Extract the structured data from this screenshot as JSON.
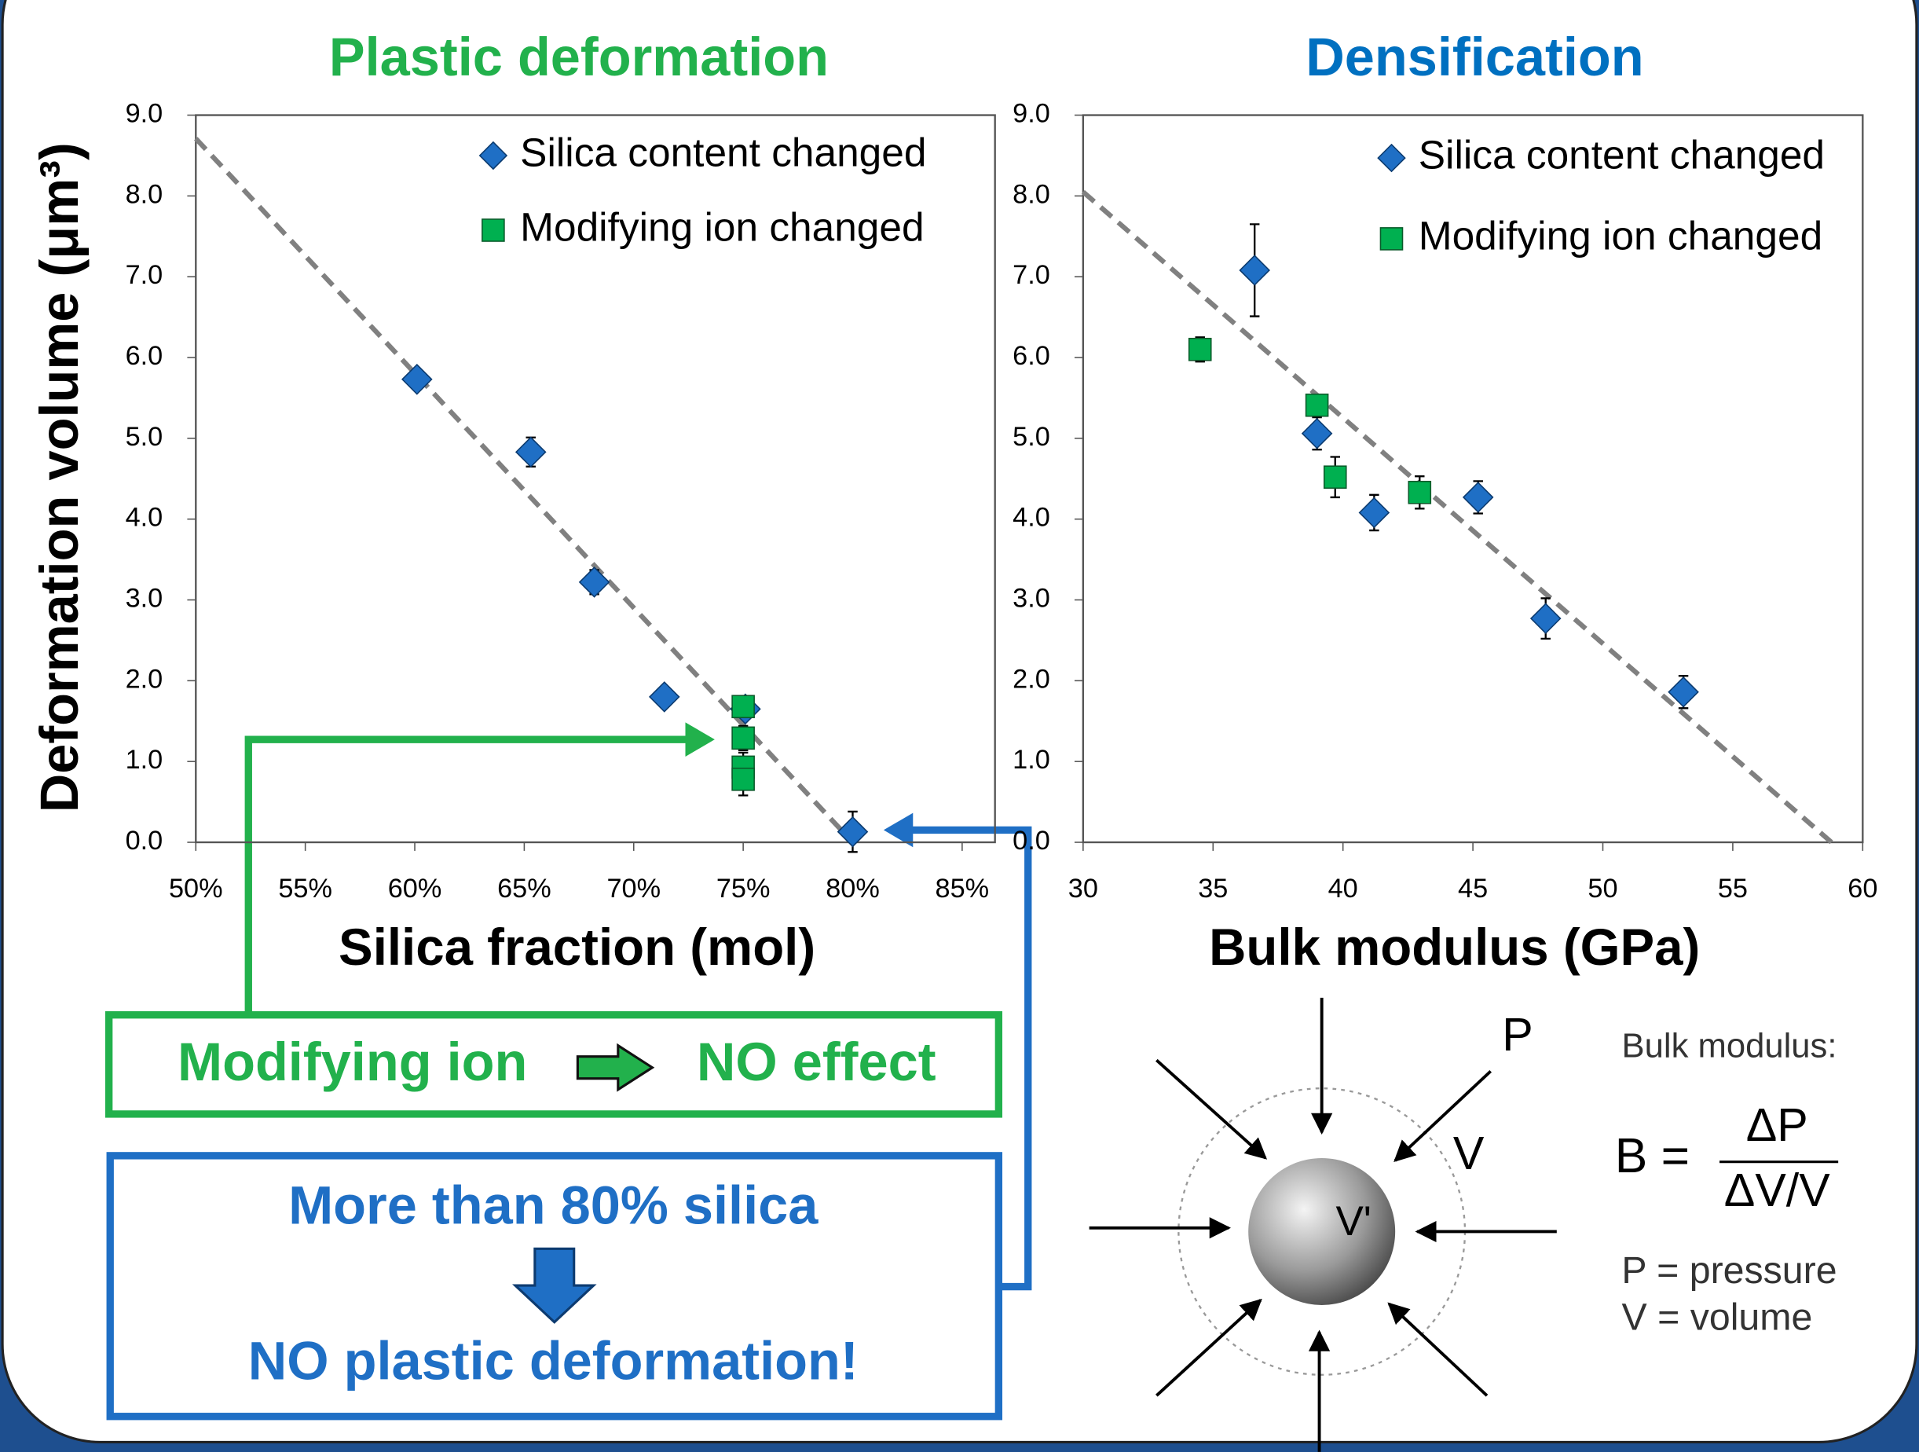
{
  "chart_data": [
    {
      "type": "scatter",
      "title": "Plastic deformation",
      "title_color": "#22b14c",
      "x_label": "Silica fraction (mol)",
      "y_label": "Deformation volume  (μm³)",
      "xlim": [
        50,
        86.5
      ],
      "ylim": [
        0,
        9
      ],
      "xticks": [
        {
          "value": 50,
          "label": "50%"
        },
        {
          "value": 55,
          "label": "55%"
        },
        {
          "value": 60,
          "label": "60%"
        },
        {
          "value": 65,
          "label": "65%"
        },
        {
          "value": 70,
          "label": "70%"
        },
        {
          "value": 75,
          "label": "75%"
        },
        {
          "value": 80,
          "label": "80%"
        },
        {
          "value": 85,
          "label": "85%"
        }
      ],
      "yticks": [
        {
          "value": 0,
          "label": "0.0"
        },
        {
          "value": 1,
          "label": "1.0"
        },
        {
          "value": 2,
          "label": "2.0"
        },
        {
          "value": 3,
          "label": "3.0"
        },
        {
          "value": 4,
          "label": "4.0"
        },
        {
          "value": 5,
          "label": "5.0"
        },
        {
          "value": 6,
          "label": "6.0"
        },
        {
          "value": 7,
          "label": "7.0"
        },
        {
          "value": 8,
          "label": "8.0"
        },
        {
          "value": 9,
          "label": "9.0"
        }
      ],
      "series": [
        {
          "name": "Silica content changed",
          "color": "#1f6fc5",
          "marker": "diamond",
          "x": [
            60.1,
            65.3,
            68.2,
            71.4,
            75.1,
            80
          ],
          "values": [
            5.73,
            4.83,
            3.22,
            1.8,
            1.65,
            0.13
          ],
          "errors": [
            0.12,
            0.18,
            0.15,
            0.08,
            0.12,
            0.25
          ]
        },
        {
          "name": "Modifying ion changed",
          "color": "#00b050",
          "marker": "square",
          "x": [
            75,
            75,
            75,
            75
          ],
          "values": [
            1.68,
            1.29,
            0.93,
            0.78
          ],
          "errors": [
            0.12,
            0.15,
            0.18,
            0.2
          ]
        }
      ],
      "trendline": {
        "x": [
          50,
          80
        ],
        "values": [
          8.71,
          0
        ],
        "color": "#808080"
      }
    },
    {
      "type": "scatter",
      "title": "Densification",
      "title_color": "#0070c0",
      "x_label": "Bulk modulus (GPa)",
      "xlim": [
        30,
        60
      ],
      "ylim": [
        0,
        9
      ],
      "xticks": [
        30,
        35,
        40,
        45,
        50,
        55,
        60
      ],
      "yticks": [
        {
          "value": 0,
          "label": "0.0"
        },
        {
          "value": 1,
          "label": "1.0"
        },
        {
          "value": 2,
          "label": "2.0"
        },
        {
          "value": 3,
          "label": "3.0"
        },
        {
          "value": 4,
          "label": "4.0"
        },
        {
          "value": 5,
          "label": "5.0"
        },
        {
          "value": 6,
          "label": "6.0"
        },
        {
          "value": 7,
          "label": "7.0"
        },
        {
          "value": 8,
          "label": "8.0"
        },
        {
          "value": 9,
          "label": "9.0"
        }
      ],
      "series": [
        {
          "name": "Silica content changed",
          "color": "#1f6fc5",
          "marker": "diamond",
          "x": [
            36.6,
            39.0,
            41.2,
            45.2,
            47.8,
            53.1
          ],
          "values": [
            7.08,
            5.06,
            4.08,
            4.27,
            2.77,
            1.86
          ],
          "errors": [
            0.57,
            0.2,
            0.22,
            0.2,
            0.25,
            0.2
          ]
        },
        {
          "name": "Modifying ion changed",
          "color": "#00b050",
          "marker": "square",
          "x": [
            34.5,
            39.0,
            39.7,
            42.95
          ],
          "values": [
            6.1,
            5.41,
            4.52,
            4.33
          ],
          "errors": [
            0.15,
            0.1,
            0.25,
            0.2
          ]
        }
      ],
      "trendline": {
        "x": [
          30,
          58.8
        ],
        "values": [
          8.05,
          0
        ],
        "color": "#808080"
      }
    }
  ],
  "callouts": {
    "green": {
      "left": "Modifying ion",
      "right": "NO effect"
    },
    "blue": {
      "top": "More than 80% silica",
      "bottom": "NO plastic deformation!"
    }
  },
  "diagram": {
    "p": "P",
    "v": "V",
    "v_prime": "V'",
    "heading": "Bulk modulus:",
    "lhs": "B =",
    "numerator": "ΔP",
    "denominator": "ΔV/V",
    "legend_p": "P = pressure",
    "legend_v": "V = volume"
  }
}
